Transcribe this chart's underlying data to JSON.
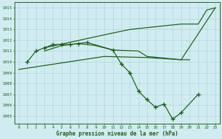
{
  "bg_color": "#d0ecf0",
  "grid_color": "#b8d8dc",
  "line_color": "#1a5c1a",
  "xlabel": "Graphe pression niveau de la mer (hPa)",
  "xlabel_color": "#1a5c1a",
  "ylabel_ticks": [
    1005,
    1006,
    1007,
    1008,
    1009,
    1010,
    1011,
    1012,
    1013,
    1014,
    1015
  ],
  "xlim": [
    -0.5,
    23.5
  ],
  "ylim": [
    1004.3,
    1015.5
  ],
  "series": [
    {
      "x": [
        1,
        2,
        3,
        4,
        5,
        6,
        7,
        8,
        11,
        12,
        13,
        14,
        15,
        16,
        17,
        18,
        19,
        21
      ],
      "y": [
        1010.0,
        1011.0,
        1011.3,
        1011.6,
        1011.6,
        1011.6,
        1011.7,
        1011.8,
        1011.1,
        1009.8,
        1009.0,
        1007.3,
        1006.5,
        1005.8,
        1006.1,
        1004.7,
        1005.3,
        1007.0
      ],
      "has_markers": true
    },
    {
      "x": [
        0,
        10,
        15,
        19,
        23
      ],
      "y": [
        1009.3,
        1010.5,
        1010.4,
        1010.2,
        1015.0
      ],
      "has_markers": false
    },
    {
      "x": [
        3,
        10,
        13,
        19,
        21,
        22,
        23
      ],
      "y": [
        1011.3,
        1012.5,
        1013.0,
        1013.5,
        1013.5,
        1014.8,
        1015.0
      ],
      "has_markers": false
    },
    {
      "x": [
        3,
        5,
        7,
        9,
        11,
        14,
        15,
        19,
        20
      ],
      "y": [
        1011.0,
        1011.5,
        1011.7,
        1011.5,
        1011.1,
        1011.0,
        1010.5,
        1010.2,
        1010.2
      ],
      "has_markers": false
    }
  ]
}
